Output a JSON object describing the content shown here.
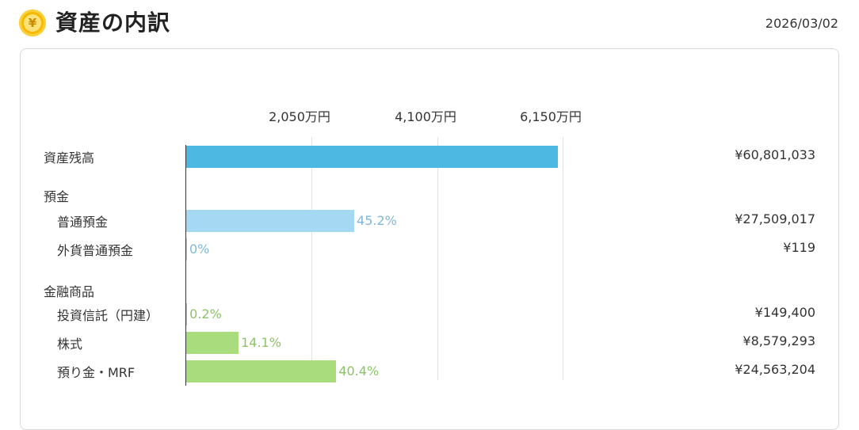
{
  "header": {
    "icon": "yen-coin-icon",
    "icon_glyph": "¥",
    "title": "資産の内訳",
    "date": "2026/03/02"
  },
  "chart_data": {
    "type": "bar",
    "orientation": "horizontal",
    "xlim": [
      0,
      61500000
    ],
    "ticks": [
      {
        "value": 20500000,
        "label": "2,050万円"
      },
      {
        "value": 41000000,
        "label": "4,100万円"
      },
      {
        "value": 61500000,
        "label": "6,150万円"
      }
    ],
    "grid": true,
    "colors": {
      "total": "#4db8e2",
      "deposit": "#a5d8f3",
      "deposit_pct": "#7fb8d8",
      "financial": "#a8dc7c",
      "financial_pct": "#8cc36a"
    },
    "groups": [
      {
        "heading": "資産残高",
        "items": [
          {
            "label": "資産残高",
            "value": 60801033,
            "display": "¥60,801,033",
            "pct": "",
            "color_key": "total"
          }
        ]
      },
      {
        "heading": "預金",
        "items": [
          {
            "label": "普通預金",
            "value": 27509017,
            "display": "¥27,509,017",
            "pct": "45.2%",
            "color_key": "deposit"
          },
          {
            "label": "外貨普通預金",
            "value": 119,
            "display": "¥119",
            "pct": "0%",
            "color_key": "deposit"
          }
        ]
      },
      {
        "heading": "金融商品",
        "items": [
          {
            "label": "投資信託（円建）",
            "value": 149400,
            "display": "¥149,400",
            "pct": "0.2%",
            "color_key": "financial"
          },
          {
            "label": "株式",
            "value": 8579293,
            "display": "¥8,579,293",
            "pct": "14.1%",
            "color_key": "financial"
          },
          {
            "label": "預り金・MRF",
            "value": 24563204,
            "display": "¥24,563,204",
            "pct": "40.4%",
            "color_key": "financial"
          }
        ]
      }
    ]
  }
}
